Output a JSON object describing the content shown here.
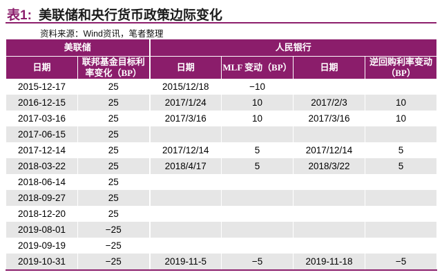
{
  "title": {
    "label": "表1:",
    "text": "美联储和央行货币政策边际变化"
  },
  "source": "资料来源：Wind资讯，笔者整理",
  "table": {
    "group_headers": {
      "fed": "美联储",
      "pboc": "人民银行"
    },
    "sub_headers": {
      "fed_date": "日期",
      "fed_rate": "联邦基金目标利率变化（BP）",
      "mlf_date": "日期",
      "mlf_change": "MLF 变动（BP）",
      "repo_date": "日期",
      "repo_change": "逆回购利率变动（BP）"
    },
    "rows": [
      [
        "2015-12-17",
        "25",
        "2015/12/18",
        "−10",
        "",
        ""
      ],
      [
        "2016-12-15",
        "25",
        "2017/1/24",
        "10",
        "2017/2/3",
        "10"
      ],
      [
        "2017-03-16",
        "25",
        "2017/3/16",
        "10",
        "2017/3/16",
        "10"
      ],
      [
        "2017-06-15",
        "25",
        "",
        "",
        "",
        ""
      ],
      [
        "2017-12-14",
        "25",
        "2017/12/14",
        "5",
        "2017/12/14",
        "5"
      ],
      [
        "2018-03-22",
        "25",
        "2018/4/17",
        "5",
        "2018/3/22",
        "5"
      ],
      [
        "2018-06-14",
        "25",
        "",
        "",
        "",
        ""
      ],
      [
        "2018-09-27",
        "25",
        "",
        "",
        "",
        ""
      ],
      [
        "2018-12-20",
        "25",
        "",
        "",
        "",
        ""
      ],
      [
        "2019-08-01",
        "−25",
        "",
        "",
        "",
        ""
      ],
      [
        "2019-09-19",
        "−25",
        "",
        "",
        "",
        ""
      ],
      [
        "2019-10-31",
        "−25",
        "2019-11-5",
        "−5",
        "2019-11-18",
        "−5"
      ]
    ]
  },
  "colors": {
    "accent": "#8b1d6b",
    "row_alt": "#e6e6e6"
  }
}
